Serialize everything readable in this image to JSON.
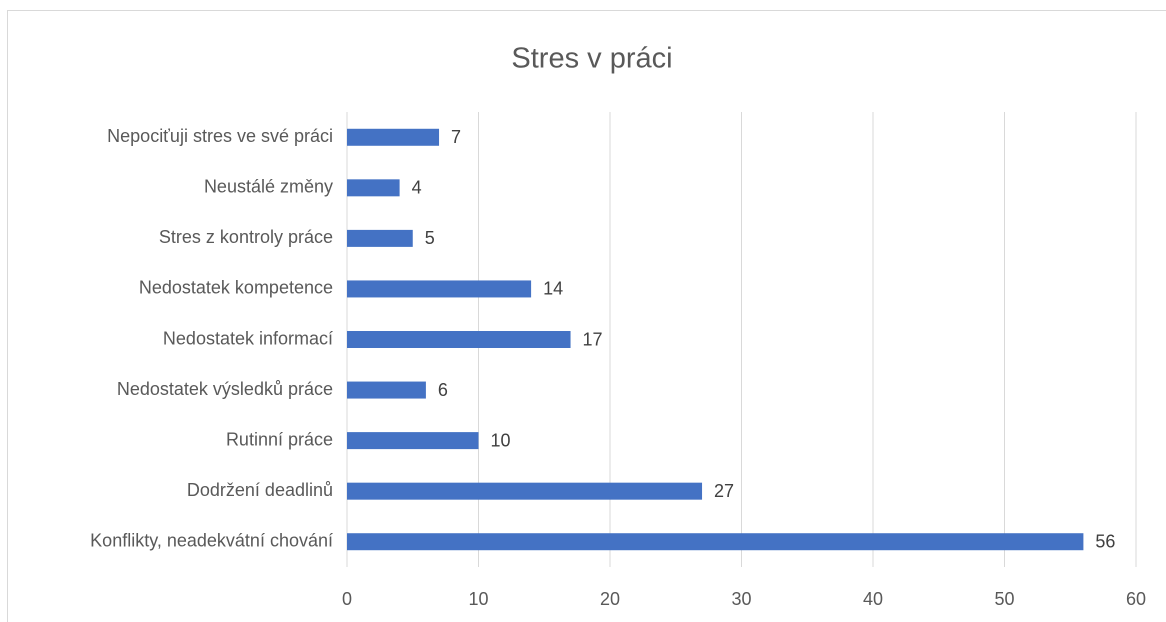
{
  "chart_data": {
    "type": "bar",
    "orientation": "horizontal",
    "title": "Stres v práci",
    "categories": [
      "Nepociťuji stres ve své práci",
      "Neustálé změny",
      "Stres z kontroly práce",
      "Nedostatek kompetence",
      "Nedostatek informací",
      "Nedostatek výsledků práce",
      "Rutinní práce",
      "Dodržení deadlinů",
      "Konflikty, neadekvátní chování"
    ],
    "values": [
      7,
      4,
      5,
      14,
      17,
      6,
      10,
      27,
      56
    ],
    "color": "#4472c4",
    "xlim": [
      0,
      60
    ],
    "xticks": [
      0,
      10,
      20,
      30,
      40,
      50,
      60
    ],
    "grid": true
  }
}
